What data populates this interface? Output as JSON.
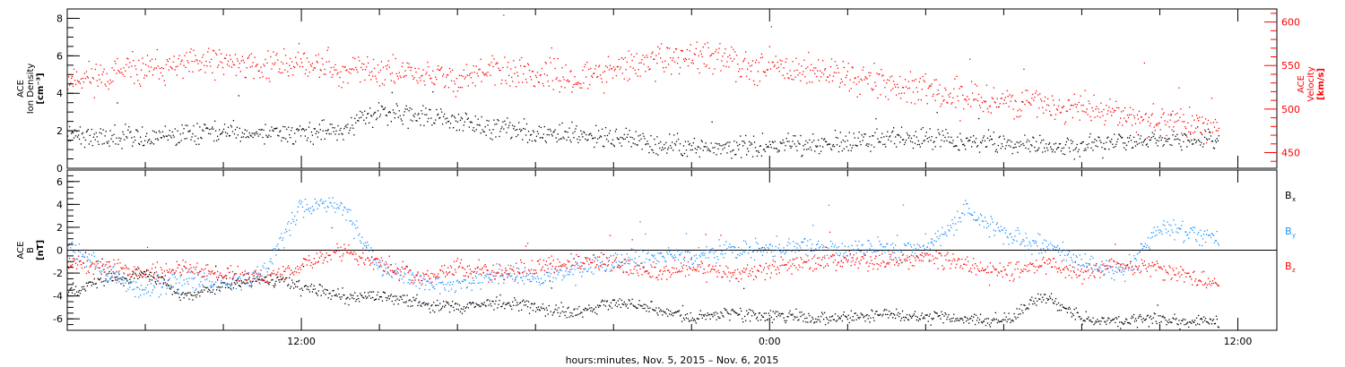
{
  "chart_data": [
    {
      "type": "scatter",
      "panel": "top",
      "ylabel_left": [
        "ACE",
        "Ion Density",
        "[cm⁻³]"
      ],
      "ylabel_right": [
        "ACE",
        "Velocity",
        "[km/s]"
      ],
      "ylim_left": [
        0,
        8.5
      ],
      "yticks_left": [
        "0",
        "2",
        "4",
        "6",
        "8"
      ],
      "ylim_right": [
        432,
        615
      ],
      "yticks_right": [
        "450",
        "500",
        "550",
        "600"
      ],
      "colors": {
        "density": "#000000",
        "velocity": "#ff0000"
      },
      "series": [
        {
          "name": "Ion Density",
          "axis": "left",
          "color": "#000000",
          "x_hours": [
            -6.0,
            -5.5,
            -5.0,
            -4.0,
            -3.0,
            -2.0,
            -1.0,
            0.0,
            1.0,
            2.0,
            3.5,
            4.0,
            5.0,
            6.0,
            8.0,
            9.0,
            10.0,
            11.0,
            12.0,
            13.0,
            14.0,
            15.0,
            16.0,
            16.5,
            17.0,
            18.0,
            19.0,
            20.0,
            21.0,
            22.0,
            23.0,
            24.0,
            25.0,
            26.0,
            27.0,
            28.0,
            29.0,
            30.0,
            31.0,
            32.0,
            33.0,
            34.0,
            35.5
          ],
          "y": [
            1.0,
            1.8,
            1.9,
            1.5,
            1.4,
            1.2,
            1.3,
            1.7,
            2.0,
            2.6,
            2.9,
            2.5,
            1.9,
            1.8,
            1.7,
            1.8,
            2.0,
            1.9,
            1.9,
            2.1,
            3.0,
            2.9,
            2.6,
            2.3,
            2.2,
            1.9,
            1.8,
            1.7,
            1.3,
            1.2,
            1.1,
            1.3,
            1.2,
            1.5,
            1.7,
            1.6,
            1.5,
            1.4,
            1.3,
            1.2,
            1.4,
            1.5,
            1.5
          ]
        },
        {
          "name": "Velocity",
          "axis": "right",
          "color": "#ff0000",
          "x_hours": [
            -6.0,
            -5.5,
            -5.0,
            -4.0,
            -3.0,
            -2.0,
            -1.0,
            0.0,
            1.0,
            2.0,
            3.0,
            4.0,
            5.0,
            6.0,
            7.0,
            8.0,
            9.0,
            10.0,
            11.0,
            12.0,
            13.0,
            14.0,
            15.0,
            16.0,
            17.0,
            18.0,
            19.0,
            20.0,
            21.0,
            22.0,
            23.0,
            24.0,
            25.0,
            26.0,
            27.0,
            28.0,
            29.0,
            30.0,
            31.0,
            32.0,
            33.0,
            34.0,
            35.5
          ],
          "y": [
            555,
            570,
            560,
            555,
            560,
            550,
            560,
            560,
            555,
            550,
            545,
            540,
            540,
            535,
            540,
            545,
            550,
            555,
            550,
            555,
            545,
            545,
            540,
            535,
            545,
            540,
            535,
            545,
            555,
            560,
            555,
            550,
            545,
            540,
            530,
            520,
            515,
            510,
            505,
            500,
            495,
            490,
            480
          ]
        }
      ]
    },
    {
      "type": "scatter",
      "panel": "bottom",
      "ylabel": [
        "ACE",
        "B",
        "[nT]"
      ],
      "ylim": [
        -7,
        7
      ],
      "yticks": [
        "-6",
        "-4",
        "-2",
        "0",
        "2",
        "4",
        "6"
      ],
      "legend_position": "right",
      "legend": [
        "Bx",
        "By",
        "Bz"
      ],
      "legend_sub": [
        "x",
        "y",
        "z"
      ],
      "legend_main": "B",
      "colors": {
        "Bx": "#000000",
        "By": "#1e90ff",
        "Bz": "#ff0000"
      },
      "series": [
        {
          "name": "Bx",
          "color": "#000000",
          "x_hours": [
            -6.0,
            -5.0,
            -4.0,
            -3.0,
            -2.0,
            -1.0,
            0.0,
            1.0,
            2.0,
            3.0,
            4.0,
            5.0,
            6.0,
            7.0,
            8.0,
            9.0,
            10.0,
            11.0,
            12.0,
            13.0,
            14.0,
            15.0,
            16.0,
            17.0,
            18.0,
            19.0,
            20.0,
            21.0,
            22.0,
            23.0,
            24.0,
            25.0,
            26.0,
            27.0,
            28.0,
            29.0,
            30.0,
            31.0,
            32.0,
            33.0,
            34.0,
            35.5
          ],
          "y": [
            -3.5,
            -4.0,
            -4.5,
            -4.0,
            -4.0,
            -4.5,
            -3.5,
            -3.0,
            -3.5,
            -2.5,
            -2.5,
            -3.0,
            -3.5,
            -2.5,
            -2.0,
            -4.0,
            -3.0,
            -2.5,
            -3.0,
            -4.0,
            -4.0,
            -4.5,
            -5.0,
            -4.5,
            -5.0,
            -5.5,
            -4.5,
            -5.0,
            -5.8,
            -5.5,
            -5.7,
            -5.8,
            -5.8,
            -5.5,
            -5.8,
            -6.0,
            -6.2,
            -4.0,
            -6.0,
            -6.2,
            -6.0,
            -6.2
          ]
        },
        {
          "name": "By",
          "color": "#1e90ff",
          "x_hours": [
            -6.0,
            -5.0,
            -4.0,
            -3.0,
            -2.0,
            -1.0,
            0.0,
            1.0,
            2.0,
            3.0,
            4.0,
            5.0,
            6.0,
            7.0,
            8.0,
            9.0,
            10.0,
            11.0,
            12.0,
            13.0,
            14.0,
            15.0,
            16.0,
            17.0,
            18.0,
            19.0,
            20.0,
            21.0,
            22.0,
            23.0,
            24.0,
            25.0,
            26.0,
            27.0,
            28.0,
            29.0,
            30.0,
            31.0,
            32.0,
            33.0,
            34.0,
            35.5
          ],
          "y": [
            2.5,
            1.0,
            -1.5,
            -2.0,
            -1.0,
            1.5,
            2.0,
            3.5,
            4.0,
            3.0,
            2.5,
            1.5,
            0.5,
            -2.0,
            -3.5,
            -2.5,
            -3.0,
            -2.0,
            4.0,
            4.0,
            -1.5,
            -2.5,
            -3.0,
            -2.0,
            -2.5,
            -1.5,
            -1.0,
            -0.5,
            -0.5,
            0.0,
            0.2,
            0.3,
            0.0,
            0.2,
            0.0,
            3.5,
            1.5,
            0.5,
            -1.0,
            -2.0,
            2.0,
            1.0
          ]
        },
        {
          "name": "Bz",
          "color": "#ff0000",
          "x_hours": [
            -6.0,
            -5.0,
            -4.0,
            -3.0,
            -2.0,
            -1.0,
            0.0,
            1.0,
            2.0,
            3.0,
            4.0,
            5.0,
            6.0,
            7.0,
            8.0,
            9.0,
            10.0,
            11.0,
            12.0,
            13.0,
            14.0,
            15.0,
            16.0,
            17.0,
            18.0,
            19.0,
            20.0,
            21.0,
            22.0,
            23.0,
            24.0,
            25.0,
            26.0,
            27.0,
            28.0,
            29.0,
            30.0,
            31.0,
            32.0,
            33.0,
            34.0,
            35.5
          ],
          "y": [
            -3.0,
            -3.5,
            -4.0,
            -3.5,
            -3.5,
            -4.0,
            -3.0,
            -3.5,
            -2.5,
            -2.0,
            -1.5,
            -2.0,
            -1.0,
            -1.5,
            -2.0,
            -1.5,
            -2.0,
            -2.5,
            -1.5,
            0.0,
            -1.0,
            -2.5,
            -1.5,
            -2.0,
            -1.5,
            -1.0,
            -1.0,
            -2.0,
            -1.5,
            -2.0,
            -1.5,
            -1.0,
            -0.8,
            -1.0,
            -0.5,
            -1.0,
            -2.0,
            -1.0,
            -2.0,
            -1.2,
            -1.5,
            -3.0
          ]
        }
      ]
    }
  ],
  "x_axis": {
    "label": "hours:minutes, Nov.  5, 2015 – Nov.  6, 2015",
    "ticks_hours": [
      12,
      24,
      36
    ],
    "tick_labels": [
      "12:00",
      "0:00",
      "12:00"
    ],
    "xlim_hours": [
      6,
      37.0
    ]
  }
}
